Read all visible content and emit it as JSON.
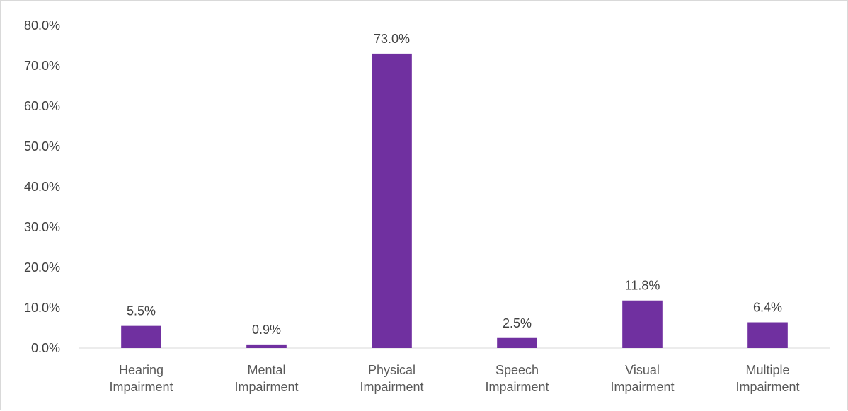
{
  "chart_data": {
    "type": "bar",
    "categories": [
      [
        "Hearing",
        "Impairment"
      ],
      [
        "Mental",
        "Impairment"
      ],
      [
        "Physical",
        "Impairment"
      ],
      [
        "Speech",
        "Impairment"
      ],
      [
        "Visual",
        "Impairment"
      ],
      [
        "Multiple",
        "Impairment"
      ]
    ],
    "values": [
      5.5,
      0.9,
      73.0,
      2.5,
      11.8,
      6.4
    ],
    "data_labels": [
      "5.5%",
      "0.9%",
      "73.0%",
      "2.5%",
      "11.8%",
      "6.4%"
    ],
    "y_ticks": [
      0,
      10,
      20,
      30,
      40,
      50,
      60,
      70,
      80
    ],
    "y_tick_labels": [
      "0.0%",
      "10.0%",
      "20.0%",
      "30.0%",
      "40.0%",
      "50.0%",
      "60.0%",
      "70.0%",
      "80.0%"
    ],
    "ylim": [
      0,
      80
    ],
    "title": "",
    "xlabel": "",
    "ylabel": "",
    "grid": false,
    "legend": "none",
    "bar_color": "#7030a0",
    "axis_color": "#d9d9d9"
  }
}
